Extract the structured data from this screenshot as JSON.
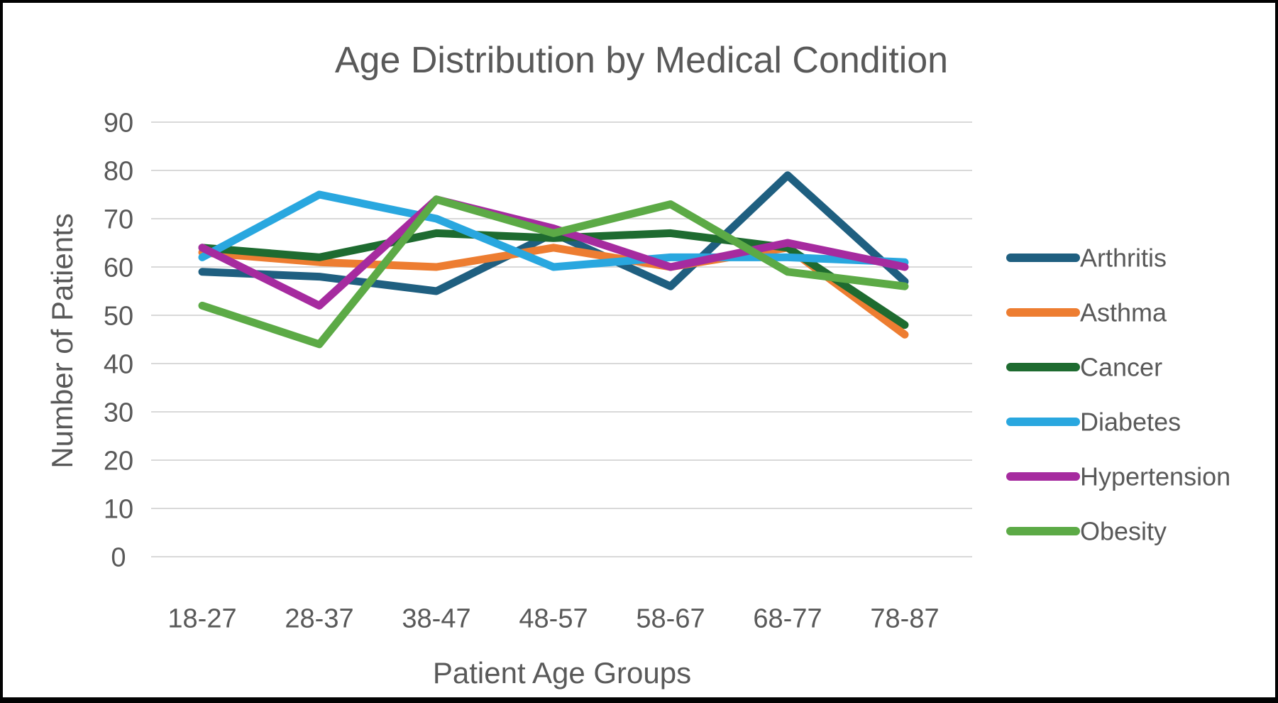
{
  "chart_data": {
    "type": "line",
    "title": "Age Distribution by Medical Condition",
    "xlabel": "Patient Age Groups",
    "ylabel": "Number of Patients",
    "categories": [
      "18-27",
      "28-37",
      "38-47",
      "48-57",
      "58-67",
      "68-77",
      "78-87"
    ],
    "series": [
      {
        "name": "Arthritis",
        "color": "#1F5F80",
        "values": [
          59,
          58,
          55,
          67,
          56,
          79,
          57
        ]
      },
      {
        "name": "Asthma",
        "color": "#ED7D31",
        "values": [
          63,
          61,
          60,
          64,
          60,
          64,
          46
        ]
      },
      {
        "name": "Cancer",
        "color": "#1E6B30",
        "values": [
          64,
          62,
          67,
          66,
          67,
          64,
          48
        ]
      },
      {
        "name": "Diabetes",
        "color": "#29A7DF",
        "values": [
          62,
          75,
          70,
          60,
          62,
          62,
          61
        ]
      },
      {
        "name": "Hypertension",
        "color": "#A62B9F",
        "values": [
          64,
          52,
          74,
          68,
          60,
          65,
          60
        ]
      },
      {
        "name": "Obesity",
        "color": "#5CAA46",
        "values": [
          52,
          44,
          74,
          67,
          73,
          59,
          56
        ]
      }
    ],
    "ylim": [
      0,
      90
    ],
    "ytick_step": 10,
    "yticks": [
      0,
      10,
      20,
      30,
      40,
      50,
      60,
      70,
      80,
      90
    ],
    "grid": "horizontal",
    "legend_position": "right",
    "text_color": "#595959",
    "gridline_color": "#D9D9D9",
    "background": "#FFFFFF",
    "border_color": "#020202"
  }
}
